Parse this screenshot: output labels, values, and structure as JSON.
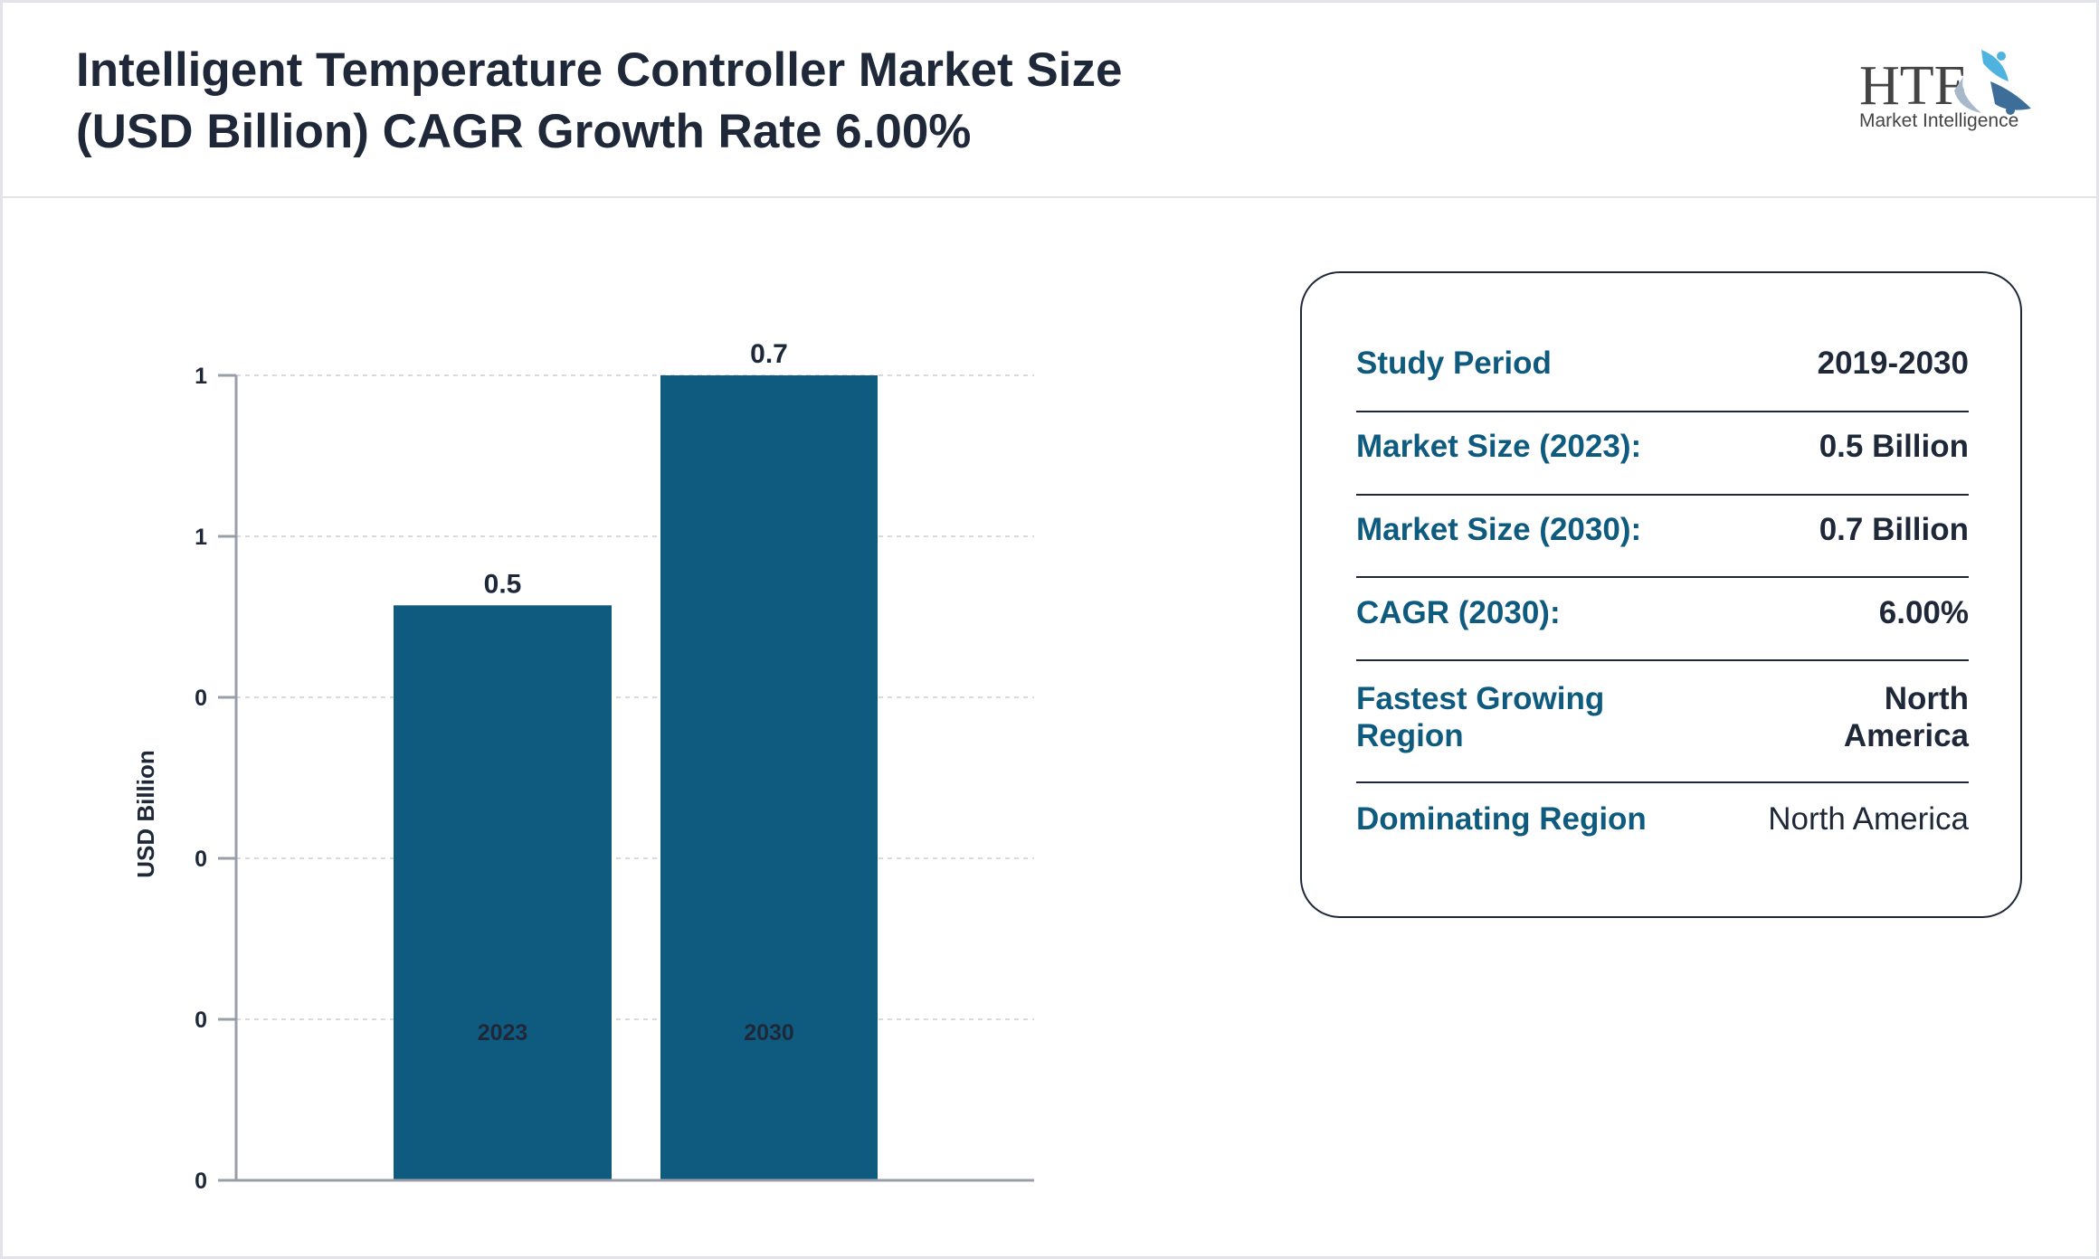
{
  "header": {
    "title_line1": "Intelligent Temperature Controller Market Size",
    "title_line2": "(USD Billion) CAGR Growth Rate 6.00%",
    "logo_text": "HTF",
    "logo_sub": "Market Intelligence"
  },
  "chart_data": {
    "type": "bar",
    "categories": [
      "2023",
      "2030"
    ],
    "values": [
      0.5,
      0.7
    ],
    "data_labels": [
      "0.5",
      "0.7"
    ],
    "ylabel": "USD Billion",
    "ylim": [
      0,
      0.7
    ],
    "yticks": [
      0,
      0.14,
      0.28,
      0.42,
      0.56,
      0.7
    ],
    "ytick_labels": [
      "0",
      "0",
      "0",
      "0",
      "1",
      "1"
    ],
    "grid": true,
    "bar_color": "#0e5b7f"
  },
  "info": {
    "rows": [
      {
        "label": "Study Period",
        "value": "2019-2030"
      },
      {
        "label": "Market Size (2023):",
        "value": "0.5 Billion"
      },
      {
        "label": "Market Size (2030):",
        "value": "0.7 Billion"
      },
      {
        "label": "CAGR (2030):",
        "value": "6.00%"
      },
      {
        "label": "Fastest Growing Region",
        "value": "North America"
      },
      {
        "label": "Dominating Region",
        "value": "North America"
      }
    ]
  }
}
